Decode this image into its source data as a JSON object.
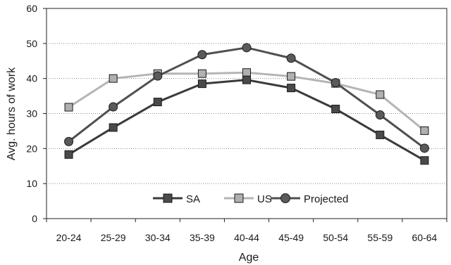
{
  "chart_data": {
    "type": "line",
    "title": "",
    "xlabel": "Age",
    "ylabel": "Avg. hours of work",
    "categories": [
      "20-24",
      "25-29",
      "30-34",
      "35-39",
      "40-44",
      "45-49",
      "50-54",
      "55-59",
      "60-64"
    ],
    "ylim": [
      0,
      60
    ],
    "yticks": [
      0,
      10,
      20,
      30,
      40,
      50,
      60
    ],
    "grid": "horizontal dotted",
    "legend_position": "inside-bottom-center",
    "series": [
      {
        "name": "SA",
        "marker": "square",
        "line_color": "#3a3a3a",
        "marker_fill": "#4a4a4a",
        "values": [
          18.3,
          26.0,
          33.3,
          38.5,
          39.6,
          37.3,
          31.3,
          23.9,
          16.6
        ]
      },
      {
        "name": "US",
        "marker": "square",
        "line_color": "#b5b5b5",
        "marker_fill": "#b0b0b0",
        "values": [
          31.8,
          40.0,
          41.4,
          41.4,
          41.7,
          40.6,
          38.6,
          35.4,
          25.1
        ]
      },
      {
        "name": "Projected",
        "marker": "circle",
        "line_color": "#4f4f4f",
        "marker_fill": "#5a5a5a",
        "values": [
          22.0,
          31.9,
          40.7,
          46.8,
          48.8,
          45.8,
          38.8,
          29.6,
          20.1
        ]
      }
    ]
  }
}
